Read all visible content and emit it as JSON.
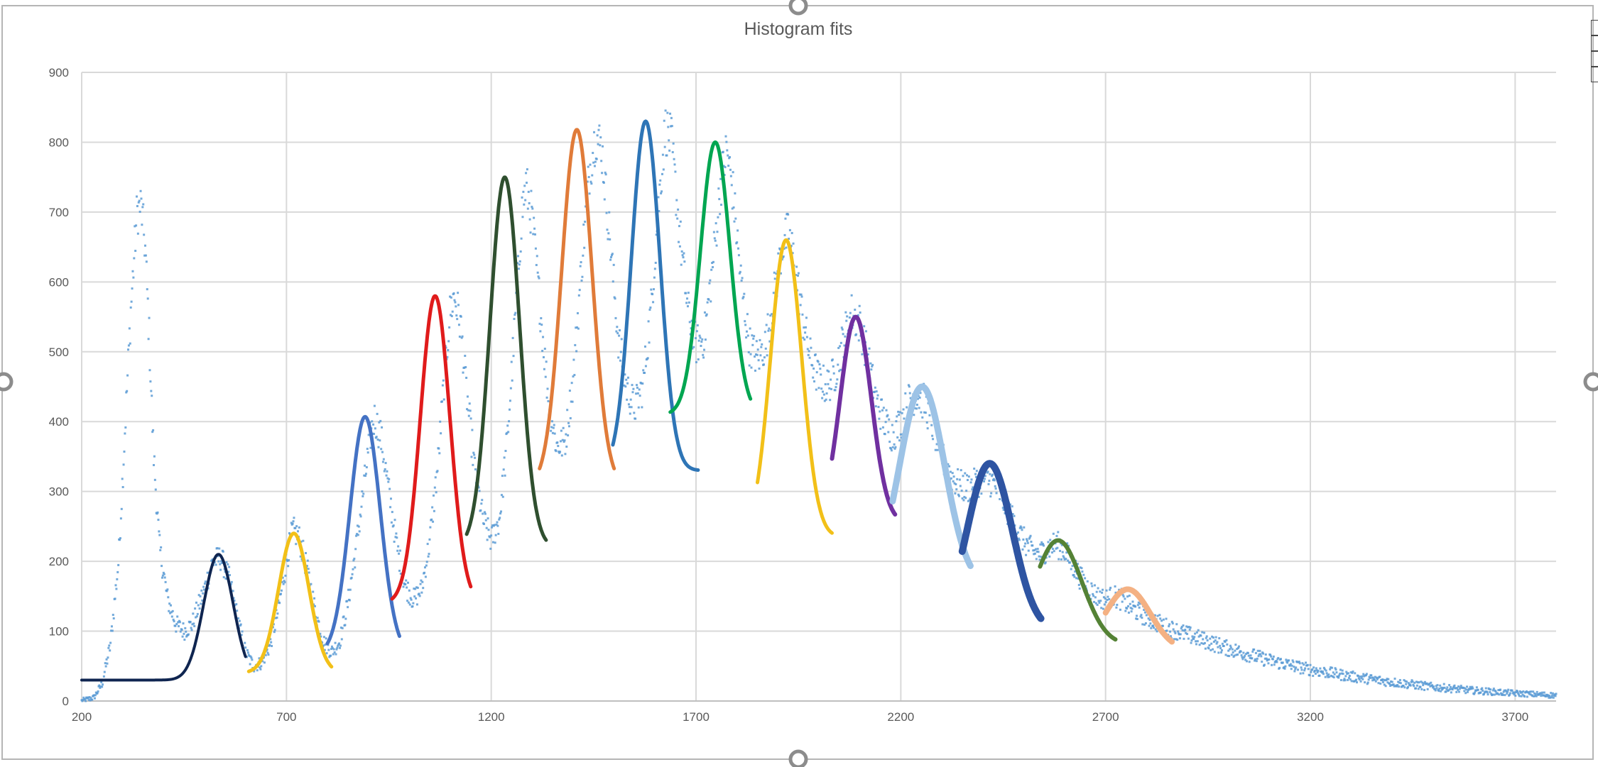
{
  "chart_data": {
    "type": "scatter",
    "title": "Histogram fits",
    "xlabel": "",
    "ylabel": "",
    "xlim": [
      200,
      3800
    ],
    "ylim": [
      0,
      900
    ],
    "x_ticks": [
      "200",
      "700",
      "1200",
      "1700",
      "2200",
      "2700",
      "3200",
      "3700"
    ],
    "y_ticks": [
      "0",
      "100",
      "200",
      "300",
      "400",
      "500",
      "600",
      "700",
      "800",
      "900"
    ],
    "grid": true,
    "legend": "none",
    "histogram_color": "#5b9bd5",
    "histogram_envelope": [
      [
        200,
        0
      ],
      [
        230,
        5
      ],
      [
        250,
        25
      ],
      [
        270,
        80
      ],
      [
        290,
        200
      ],
      [
        305,
        380
      ],
      [
        320,
        560
      ],
      [
        335,
        700
      ],
      [
        345,
        710
      ],
      [
        355,
        650
      ],
      [
        365,
        520
      ],
      [
        375,
        360
      ],
      [
        390,
        220
      ],
      [
        410,
        145
      ],
      [
        430,
        110
      ],
      [
        450,
        100
      ],
      [
        470,
        110
      ],
      [
        500,
        160
      ],
      [
        520,
        200
      ],
      [
        540,
        205
      ],
      [
        560,
        175
      ],
      [
        580,
        120
      ],
      [
        600,
        70
      ],
      [
        620,
        50
      ],
      [
        640,
        55
      ],
      [
        660,
        80
      ],
      [
        680,
        130
      ],
      [
        700,
        200
      ],
      [
        715,
        245
      ],
      [
        730,
        235
      ],
      [
        750,
        190
      ],
      [
        770,
        130
      ],
      [
        790,
        85
      ],
      [
        810,
        70
      ],
      [
        830,
        85
      ],
      [
        850,
        140
      ],
      [
        870,
        220
      ],
      [
        890,
        310
      ],
      [
        905,
        380
      ],
      [
        915,
        405
      ],
      [
        930,
        380
      ],
      [
        950,
        300
      ],
      [
        970,
        220
      ],
      [
        990,
        165
      ],
      [
        1010,
        145
      ],
      [
        1030,
        160
      ],
      [
        1050,
        230
      ],
      [
        1070,
        340
      ],
      [
        1085,
        460
      ],
      [
        1100,
        560
      ],
      [
        1110,
        580
      ],
      [
        1125,
        540
      ],
      [
        1140,
        440
      ],
      [
        1160,
        330
      ],
      [
        1180,
        260
      ],
      [
        1200,
        230
      ],
      [
        1220,
        260
      ],
      [
        1240,
        380
      ],
      [
        1260,
        560
      ],
      [
        1275,
        700
      ],
      [
        1285,
        740
      ],
      [
        1300,
        690
      ],
      [
        1320,
        560
      ],
      [
        1340,
        430
      ],
      [
        1360,
        365
      ],
      [
        1380,
        370
      ],
      [
        1400,
        460
      ],
      [
        1420,
        620
      ],
      [
        1440,
        760
      ],
      [
        1455,
        810
      ],
      [
        1470,
        790
      ],
      [
        1490,
        660
      ],
      [
        1510,
        520
      ],
      [
        1530,
        450
      ],
      [
        1550,
        420
      ],
      [
        1570,
        450
      ],
      [
        1590,
        560
      ],
      [
        1610,
        720
      ],
      [
        1625,
        820
      ],
      [
        1640,
        800
      ],
      [
        1660,
        670
      ],
      [
        1680,
        560
      ],
      [
        1700,
        510
      ],
      [
        1720,
        520
      ],
      [
        1740,
        620
      ],
      [
        1760,
        740
      ],
      [
        1775,
        790
      ],
      [
        1790,
        730
      ],
      [
        1810,
        600
      ],
      [
        1830,
        510
      ],
      [
        1850,
        490
      ],
      [
        1870,
        510
      ],
      [
        1890,
        580
      ],
      [
        1910,
        650
      ],
      [
        1925,
        670
      ],
      [
        1940,
        630
      ],
      [
        1960,
        550
      ],
      [
        1980,
        490
      ],
      [
        2000,
        460
      ],
      [
        2020,
        450
      ],
      [
        2040,
        470
      ],
      [
        2060,
        520
      ],
      [
        2080,
        555
      ],
      [
        2100,
        540
      ],
      [
        2120,
        490
      ],
      [
        2140,
        430
      ],
      [
        2160,
        400
      ],
      [
        2180,
        380
      ],
      [
        2200,
        400
      ],
      [
        2220,
        430
      ],
      [
        2240,
        440
      ],
      [
        2260,
        425
      ],
      [
        2280,
        390
      ],
      [
        2300,
        350
      ],
      [
        2320,
        325
      ],
      [
        2340,
        310
      ],
      [
        2360,
        305
      ],
      [
        2380,
        310
      ],
      [
        2400,
        320
      ],
      [
        2420,
        315
      ],
      [
        2440,
        300
      ],
      [
        2460,
        275
      ],
      [
        2480,
        250
      ],
      [
        2500,
        230
      ],
      [
        2520,
        215
      ],
      [
        2540,
        210
      ],
      [
        2560,
        220
      ],
      [
        2580,
        225
      ],
      [
        2600,
        215
      ],
      [
        2620,
        195
      ],
      [
        2640,
        175
      ],
      [
        2660,
        160
      ],
      [
        2680,
        150
      ],
      [
        2700,
        145
      ],
      [
        2720,
        150
      ],
      [
        2740,
        145
      ],
      [
        2760,
        135
      ],
      [
        2800,
        120
      ],
      [
        2850,
        105
      ],
      [
        2900,
        95
      ],
      [
        3000,
        75
      ],
      [
        3100,
        58
      ],
      [
        3200,
        45
      ],
      [
        3300,
        35
      ],
      [
        3400,
        27
      ],
      [
        3500,
        20
      ],
      [
        3600,
        15
      ],
      [
        3700,
        11
      ],
      [
        3800,
        8
      ]
    ],
    "fits": [
      {
        "color": "#0f2550",
        "amp": 180,
        "mu": 534,
        "sigma": 36,
        "base": 30,
        "xmin": 200,
        "xmax": 600,
        "stroke": 4
      },
      {
        "color": "#f2c018",
        "amp": 200,
        "mu": 718,
        "sigma": 37,
        "base": 40,
        "xmin": 608,
        "xmax": 810,
        "stroke": 5
      },
      {
        "color": "#4472c4",
        "amp": 340,
        "mu": 892,
        "sigma": 37,
        "base": 67,
        "xmin": 800,
        "xmax": 977,
        "stroke": 5
      },
      {
        "color": "#e01b1b",
        "amp": 440,
        "mu": 1063,
        "sigma": 36,
        "base": 140,
        "xmin": 958,
        "xmax": 1150,
        "stroke": 5
      },
      {
        "color": "#2f4f2f",
        "amp": 530,
        "mu": 1233,
        "sigma": 36,
        "base": 220,
        "xmin": 1140,
        "xmax": 1335,
        "stroke": 5
      },
      {
        "color": "#e07b39",
        "amp": 510,
        "mu": 1409,
        "sigma": 37,
        "base": 308,
        "xmin": 1318,
        "xmax": 1500,
        "stroke": 5
      },
      {
        "color": "#2e75b6",
        "amp": 500,
        "mu": 1577,
        "sigma": 35,
        "base": 330,
        "xmin": 1497,
        "xmax": 1705,
        "stroke": 5
      },
      {
        "color": "#00a651",
        "amp": 390,
        "mu": 1747,
        "sigma": 36,
        "base": 410,
        "xmin": 1637,
        "xmax": 1833,
        "stroke": 5
      },
      {
        "color": "#f2c018",
        "amp": 425,
        "mu": 1920,
        "sigma": 38,
        "base": 235,
        "xmin": 1850,
        "xmax": 2033,
        "stroke": 5
      },
      {
        "color": "#7030a0",
        "amp": 295,
        "mu": 2090,
        "sigma": 38,
        "base": 255,
        "xmin": 2032,
        "xmax": 2187,
        "stroke": 6
      },
      {
        "color": "#9dc3e6",
        "amp": 285,
        "mu": 2252,
        "sigma": 55,
        "base": 165,
        "xmin": 2180,
        "xmax": 2370,
        "stroke": 9
      },
      {
        "color": "#2e54a2",
        "amp": 240,
        "mu": 2417,
        "sigma": 55,
        "base": 100,
        "xmin": 2350,
        "xmax": 2542,
        "stroke": 10
      },
      {
        "color": "#548235",
        "amp": 150,
        "mu": 2584,
        "sigma": 58,
        "base": 80,
        "xmin": 2540,
        "xmax": 2725,
        "stroke": 6
      },
      {
        "color": "#f4b183",
        "amp": 88,
        "mu": 2754,
        "sigma": 55,
        "base": 72,
        "xmin": 2700,
        "xmax": 2862,
        "stroke": 8
      }
    ]
  }
}
